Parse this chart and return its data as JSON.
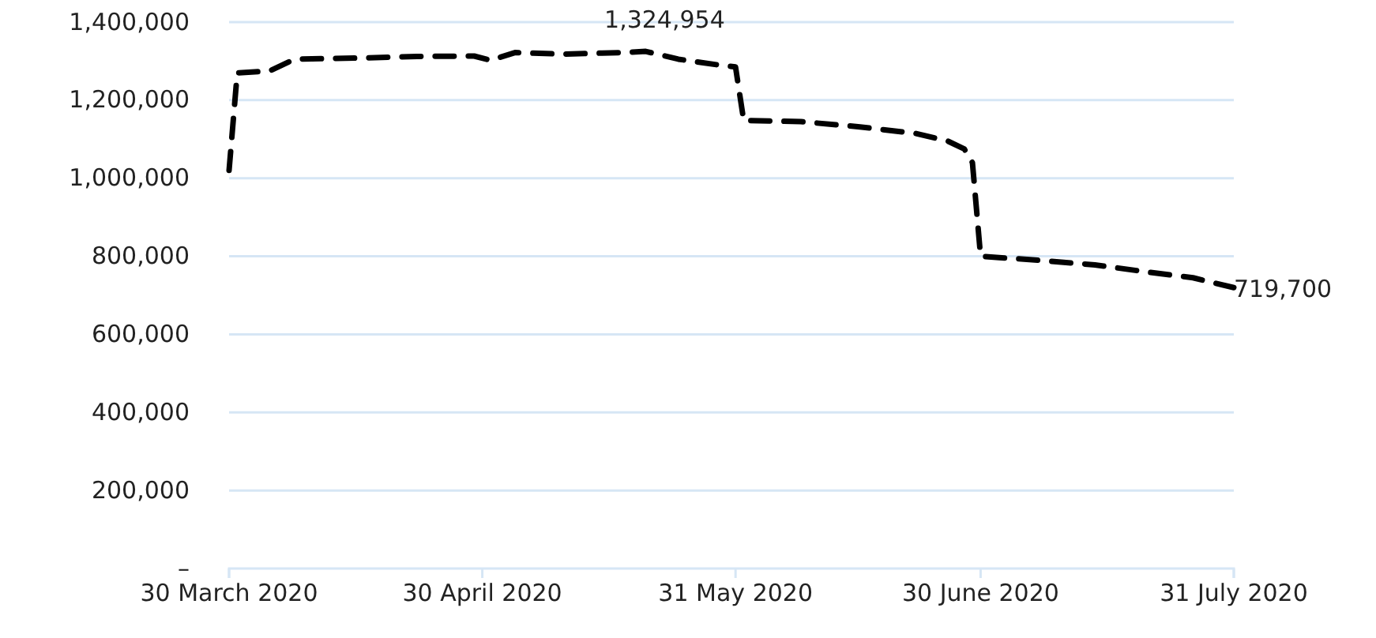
{
  "chart_data": {
    "type": "line",
    "line_style": "dashed",
    "grid": "y",
    "marker": "none",
    "x": [
      "2020-03-30",
      "2020-03-31",
      "2020-04-04",
      "2020-04-07",
      "2020-04-15",
      "2020-04-22",
      "2020-04-29",
      "2020-05-01",
      "2020-05-04",
      "2020-05-10",
      "2020-05-17",
      "2020-05-20",
      "2020-05-24",
      "2020-05-29",
      "2020-05-31",
      "2020-06-01",
      "2020-06-08",
      "2020-06-15",
      "2020-06-22",
      "2020-06-26",
      "2020-06-28",
      "2020-06-29",
      "2020-06-30",
      "2020-07-07",
      "2020-07-14",
      "2020-07-21",
      "2020-07-26",
      "2020-07-31"
    ],
    "series": [
      {
        "color": "#000000",
        "values": [
          1020000,
          1270000,
          1275000,
          1305000,
          1308000,
          1312000,
          1313000,
          1302000,
          1322000,
          1318000,
          1322000,
          1324954,
          1305000,
          1290000,
          1285000,
          1148000,
          1145000,
          1132000,
          1115000,
          1095000,
          1075000,
          1040000,
          800000,
          790000,
          778000,
          758000,
          745000,
          719700
        ],
        "value_labels": [
          null,
          null,
          null,
          null,
          null,
          null,
          null,
          null,
          null,
          null,
          null,
          "1,324,954",
          null,
          null,
          null,
          null,
          null,
          null,
          null,
          null,
          null,
          null,
          null,
          null,
          null,
          null,
          null,
          "719,700"
        ]
      }
    ],
    "xlim": [
      "2020-03-30",
      "2020-07-31"
    ],
    "xticks": [
      {
        "value": "2020-03-30",
        "label": "30 March 2020"
      },
      {
        "value": "2020-04-30",
        "label": "30 April 2020"
      },
      {
        "value": "2020-05-31",
        "label": "31 May 2020"
      },
      {
        "value": "2020-06-30",
        "label": "30 June 2020"
      },
      {
        "value": "2020-07-31",
        "label": "31 July 2020"
      }
    ],
    "ylim": [
      0,
      1400000
    ],
    "yticks": [
      {
        "value": 0,
        "label": "–"
      },
      {
        "value": 200000,
        "label": "200,000"
      },
      {
        "value": 400000,
        "label": "400,000"
      },
      {
        "value": 600000,
        "label": "600,000"
      },
      {
        "value": 800000,
        "label": "800,000"
      },
      {
        "value": 1000000,
        "label": "1,000,000"
      },
      {
        "value": 1200000,
        "label": "1,200,000"
      },
      {
        "value": 1400000,
        "label": "1,400,000"
      }
    ]
  }
}
